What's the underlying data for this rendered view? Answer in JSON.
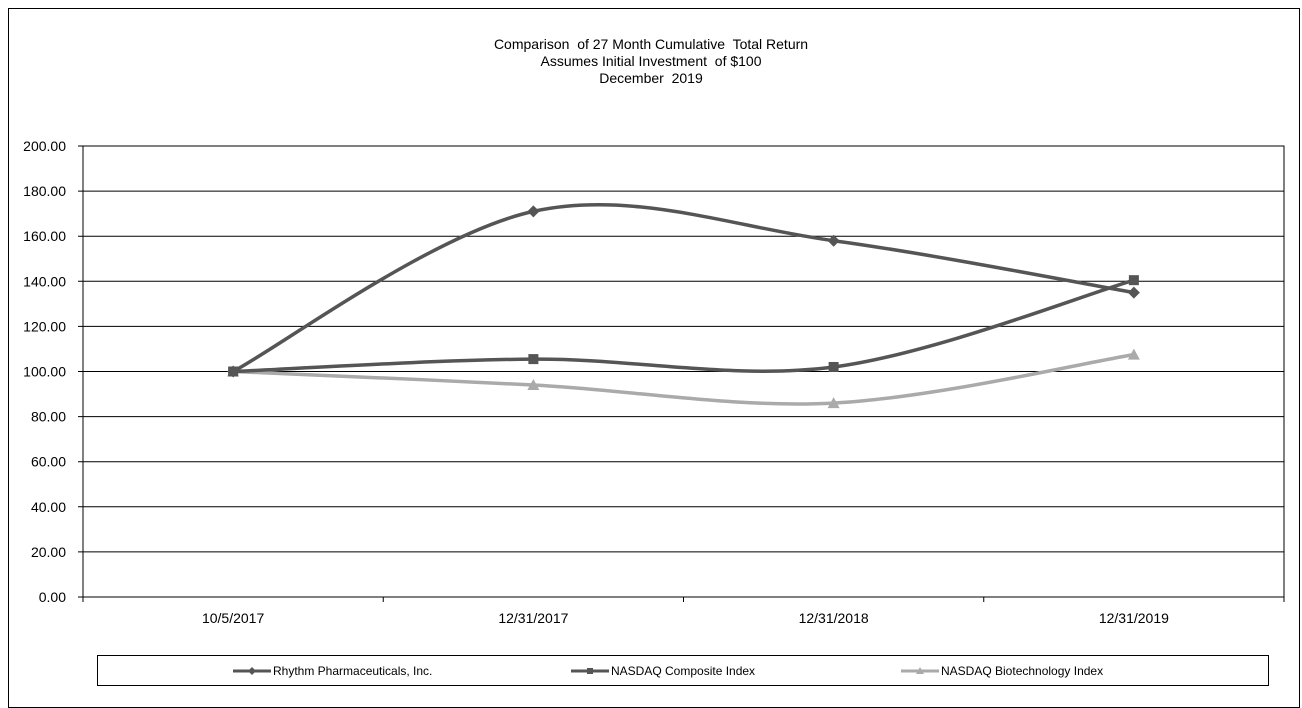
{
  "chart_data": {
    "type": "line",
    "title": [
      "Comparison  of 27 Month Cumulative  Total Return",
      "Assumes Initial Investment  of $100",
      "December  2019"
    ],
    "xlabel": "",
    "ylabel": "",
    "categories": [
      "10/5/2017",
      "12/31/2017",
      "12/31/2018",
      "12/31/2019"
    ],
    "ylim": [
      0,
      200
    ],
    "yticks": [
      "0.00",
      "20.00",
      "40.00",
      "60.00",
      "80.00",
      "100.00",
      "120.00",
      "140.00",
      "160.00",
      "180.00",
      "200.00"
    ],
    "grid": true,
    "smooth": true,
    "legend_position": "bottom",
    "series": [
      {
        "name": "Rhythm Pharmaceuticals, Inc.",
        "values": [
          100.0,
          171.0,
          158.0,
          135.0
        ],
        "marker": "diamond",
        "color": "#555555"
      },
      {
        "name": "NASDAQ Composite Index",
        "values": [
          100.0,
          105.5,
          102.0,
          140.5
        ],
        "marker": "square",
        "color": "#555555"
      },
      {
        "name": "NASDAQ Biotechnology Index",
        "values": [
          100.0,
          94.0,
          86.0,
          107.5
        ],
        "marker": "triangle",
        "color": "#aaaaaa"
      }
    ]
  }
}
